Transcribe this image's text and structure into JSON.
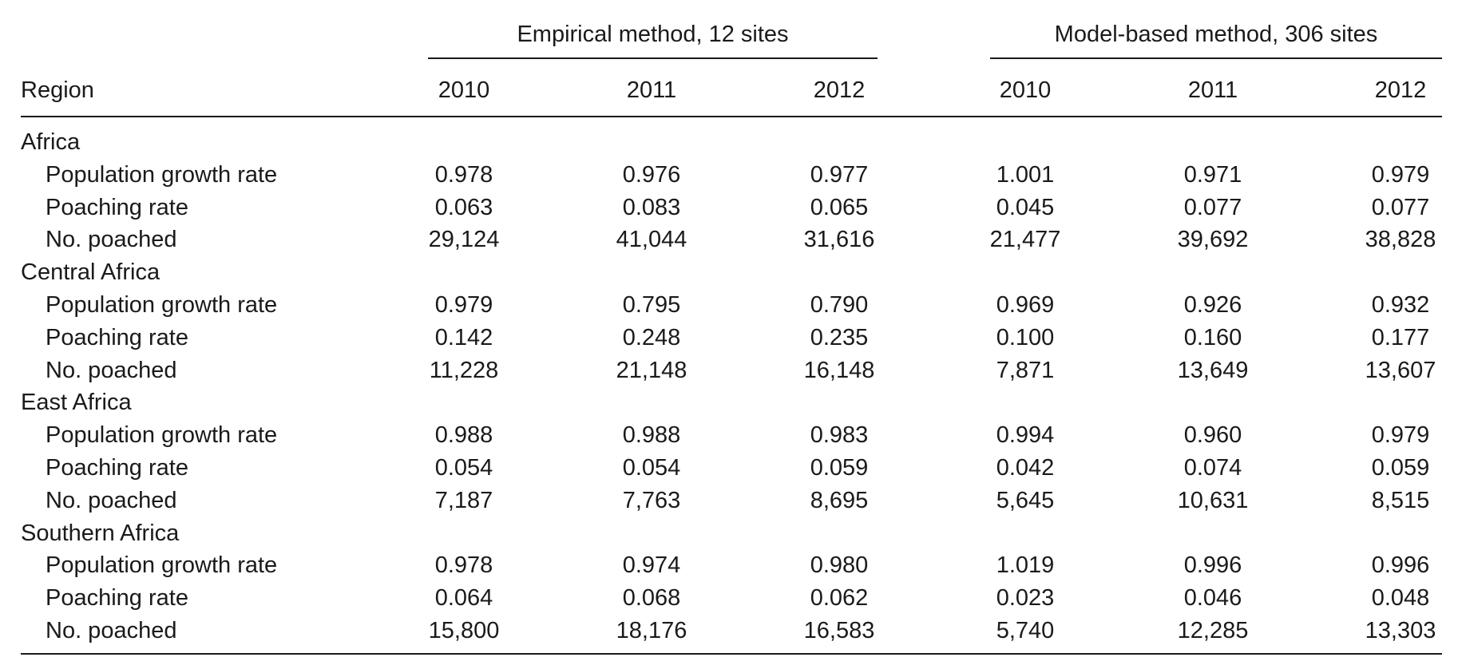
{
  "table": {
    "group_headers": [
      "Empirical method, 12 sites",
      "Model-based method, 306 sites"
    ],
    "region_header": "Region",
    "year_headers": [
      "2010",
      "2011",
      "2012",
      "2010",
      "2011",
      "2012"
    ],
    "sections": [
      {
        "region": "Africa",
        "rows": [
          {
            "label": "Population growth rate",
            "values": [
              "0.978",
              "0.976",
              "0.977",
              "1.001",
              "0.971",
              "0.979"
            ]
          },
          {
            "label": "Poaching rate",
            "values": [
              "0.063",
              "0.083",
              "0.065",
              "0.045",
              "0.077",
              "0.077"
            ]
          },
          {
            "label": "No. poached",
            "values": [
              "29,124",
              "41,044",
              "31,616",
              "21,477",
              "39,692",
              "38,828"
            ]
          }
        ]
      },
      {
        "region": "Central Africa",
        "rows": [
          {
            "label": "Population growth rate",
            "values": [
              "0.979",
              "0.795",
              "0.790",
              "0.969",
              "0.926",
              "0.932"
            ]
          },
          {
            "label": "Poaching rate",
            "values": [
              "0.142",
              "0.248",
              "0.235",
              "0.100",
              "0.160",
              "0.177"
            ]
          },
          {
            "label": "No. poached",
            "values": [
              "11,228",
              "21,148",
              "16,148",
              "7,871",
              "13,649",
              "13,607"
            ]
          }
        ]
      },
      {
        "region": "East Africa",
        "rows": [
          {
            "label": "Population growth rate",
            "values": [
              "0.988",
              "0.988",
              "0.983",
              "0.994",
              "0.960",
              "0.979"
            ]
          },
          {
            "label": "Poaching rate",
            "values": [
              "0.054",
              "0.054",
              "0.059",
              "0.042",
              "0.074",
              "0.059"
            ]
          },
          {
            "label": "No. poached",
            "values": [
              "7,187",
              "7,763",
              "8,695",
              "5,645",
              "10,631",
              "8,515"
            ]
          }
        ]
      },
      {
        "region": "Southern Africa",
        "rows": [
          {
            "label": "Population growth rate",
            "values": [
              "0.978",
              "0.974",
              "0.980",
              "1.019",
              "0.996",
              "0.996"
            ]
          },
          {
            "label": "Poaching rate",
            "values": [
              "0.064",
              "0.068",
              "0.062",
              "0.023",
              "0.046",
              "0.048"
            ]
          },
          {
            "label": "No. poached",
            "values": [
              "15,800",
              "18,176",
              "16,583",
              "5,740",
              "12,285",
              "13,303"
            ]
          }
        ]
      }
    ]
  }
}
